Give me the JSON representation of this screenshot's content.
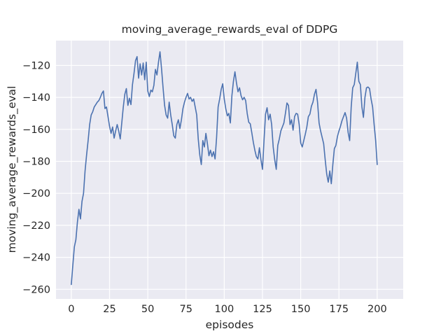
{
  "colors": {
    "line": "#4c72b0",
    "plot_background": "#eaeaf2",
    "grid": "#ffffff",
    "text": "#262626",
    "figure_background": "#ffffff"
  },
  "chart_data": {
    "type": "line",
    "title": "moving_average_rewards_eval of DDPG",
    "xlabel": "episodes",
    "ylabel": "moving_average_rewards_eval",
    "legend": "none",
    "grid": true,
    "x_ticks": [
      0,
      25,
      50,
      75,
      100,
      125,
      150,
      175,
      200
    ],
    "y_ticks": [
      -120,
      -140,
      -160,
      -180,
      -200,
      -220,
      -240,
      -260
    ],
    "xlim": [
      -10,
      217
    ],
    "ylim": [
      -266,
      -104.5
    ],
    "series": [
      {
        "name": "moving_average_rewards_eval",
        "color": "#4c72b0",
        "x_start": 0,
        "x_step": 1,
        "values": [
          -257,
          -245,
          -233.5,
          -229,
          -218,
          -210,
          -216,
          -205,
          -200,
          -186,
          -176,
          -167,
          -157,
          -151,
          -149,
          -146,
          -144.5,
          -143,
          -142,
          -140,
          -137.5,
          -136,
          -147,
          -146,
          -152,
          -158,
          -162.5,
          -158.5,
          -165.5,
          -161,
          -157,
          -161,
          -166,
          -156,
          -146,
          -138,
          -134.5,
          -145,
          -140.5,
          -144.5,
          -132,
          -125,
          -117,
          -114.5,
          -128,
          -119,
          -126,
          -118.5,
          -129,
          -118,
          -136,
          -139.5,
          -135.5,
          -136.5,
          -132.5,
          -122.5,
          -126,
          -118,
          -111.5,
          -122,
          -134,
          -145,
          -151,
          -153,
          -143,
          -151,
          -157,
          -164,
          -165.5,
          -157,
          -154,
          -159.5,
          -154,
          -147,
          -143,
          -140,
          -137.5,
          -141,
          -140,
          -142.5,
          -141,
          -146,
          -151,
          -166,
          -176,
          -182,
          -167,
          -171,
          -162.5,
          -169,
          -176.5,
          -173,
          -177,
          -174,
          -178.5,
          -165,
          -146,
          -141,
          -135,
          -131.5,
          -141,
          -147,
          -151.5,
          -150,
          -156,
          -139,
          -130,
          -124,
          -131,
          -136.5,
          -134,
          -139,
          -141.5,
          -140,
          -142,
          -150,
          -155.5,
          -156.5,
          -162,
          -168,
          -173,
          -177,
          -178.5,
          -171.5,
          -179,
          -185,
          -167,
          -150.5,
          -146.5,
          -154,
          -150.5,
          -157,
          -171,
          -179,
          -185,
          -170,
          -166,
          -161,
          -158.5,
          -156,
          -150,
          -143.5,
          -145,
          -157,
          -154,
          -160.5,
          -152,
          -150,
          -150.5,
          -157,
          -168.5,
          -171,
          -167,
          -163,
          -158.5,
          -152,
          -150.5,
          -145.5,
          -143,
          -138,
          -135,
          -143,
          -156,
          -161,
          -165,
          -169,
          -179,
          -188,
          -193,
          -186,
          -194,
          -182,
          -172,
          -170,
          -164.5,
          -161,
          -158,
          -154.5,
          -152,
          -149.5,
          -153,
          -162,
          -167,
          -146,
          -134,
          -132,
          -125,
          -118,
          -130,
          -132,
          -146,
          -152.5,
          -140,
          -134,
          -133.5,
          -134.5,
          -141,
          -146,
          -157,
          -167,
          -182
        ]
      }
    ]
  }
}
